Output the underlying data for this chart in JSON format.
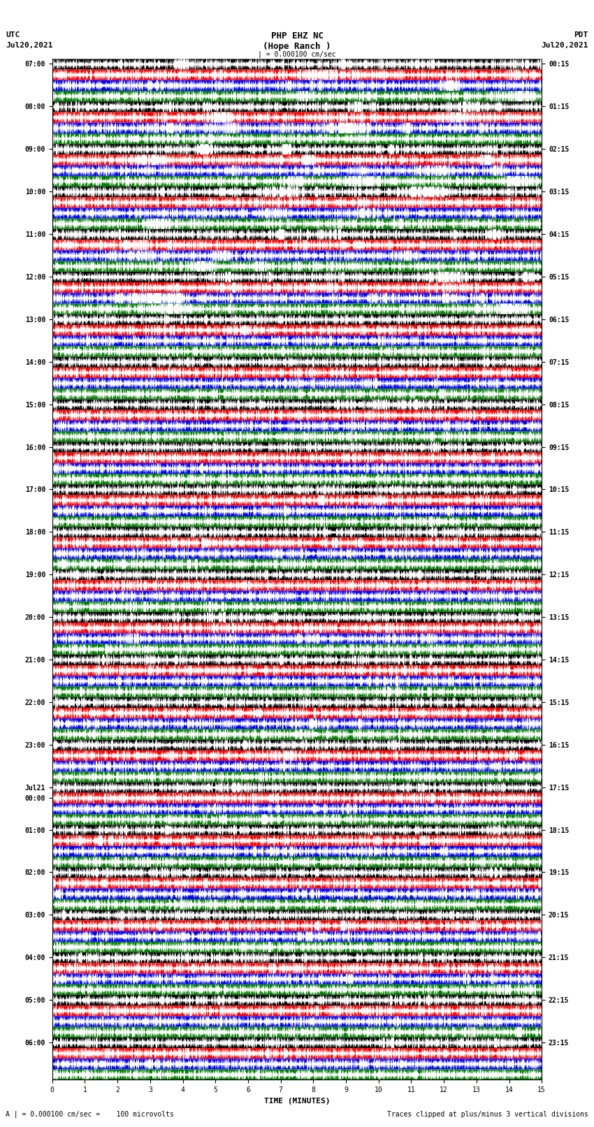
{
  "title_line1": "PHP EHZ NC",
  "title_line2": "(Hope Ranch )",
  "title_line3": "| = 0.000100 cm/sec",
  "left_header_line1": "UTC",
  "left_header_line2": "Jul20,2021",
  "right_header_line1": "PDT",
  "right_header_line2": "Jul20,2021",
  "xlabel": "TIME (MINUTES)",
  "footer_left": "A | = 0.000100 cm/sec =    100 microvolts",
  "footer_right": "Traces clipped at plus/minus 3 vertical divisions",
  "xlim": [
    0,
    15
  ],
  "xticks": [
    0,
    1,
    2,
    3,
    4,
    5,
    6,
    7,
    8,
    9,
    10,
    11,
    12,
    13,
    14,
    15
  ],
  "trace_colors": [
    "black",
    "red",
    "blue",
    "green"
  ],
  "background_color": "white",
  "num_rows": 96,
  "fig_width": 8.5,
  "fig_height": 16.13,
  "left_times_utc": [
    "07:00",
    "",
    "",
    "",
    "08:00",
    "",
    "",
    "",
    "09:00",
    "",
    "",
    "",
    "10:00",
    "",
    "",
    "",
    "11:00",
    "",
    "",
    "",
    "12:00",
    "",
    "",
    "",
    "13:00",
    "",
    "",
    "",
    "14:00",
    "",
    "",
    "",
    "15:00",
    "",
    "",
    "",
    "16:00",
    "",
    "",
    "",
    "17:00",
    "",
    "",
    "",
    "18:00",
    "",
    "",
    "",
    "19:00",
    "",
    "",
    "",
    "20:00",
    "",
    "",
    "",
    "21:00",
    "",
    "",
    "",
    "22:00",
    "",
    "",
    "",
    "23:00",
    "",
    "",
    "",
    "Jul21",
    "00:00",
    "",
    "",
    "01:00",
    "",
    "",
    "",
    "02:00",
    "",
    "",
    "",
    "03:00",
    "",
    "",
    "",
    "04:00",
    "",
    "",
    "",
    "05:00",
    "",
    "",
    "",
    "06:00",
    "",
    "",
    ""
  ],
  "right_times_pdt": [
    "00:15",
    "",
    "",
    "",
    "01:15",
    "",
    "",
    "",
    "02:15",
    "",
    "",
    "",
    "03:15",
    "",
    "",
    "",
    "04:15",
    "",
    "",
    "",
    "05:15",
    "",
    "",
    "",
    "06:15",
    "",
    "",
    "",
    "07:15",
    "",
    "",
    "",
    "08:15",
    "",
    "",
    "",
    "09:15",
    "",
    "",
    "",
    "10:15",
    "",
    "",
    "",
    "11:15",
    "",
    "",
    "",
    "12:15",
    "",
    "",
    "",
    "13:15",
    "",
    "",
    "",
    "14:15",
    "",
    "",
    "",
    "15:15",
    "",
    "",
    "",
    "16:15",
    "",
    "",
    "",
    "17:15",
    "",
    "",
    "",
    "18:15",
    "",
    "",
    "",
    "19:15",
    "",
    "",
    "",
    "20:15",
    "",
    "",
    "",
    "21:15",
    "",
    "",
    "",
    "22:15",
    "",
    "",
    "",
    "23:15",
    "",
    "",
    ""
  ],
  "seed": 42,
  "dpi": 100
}
